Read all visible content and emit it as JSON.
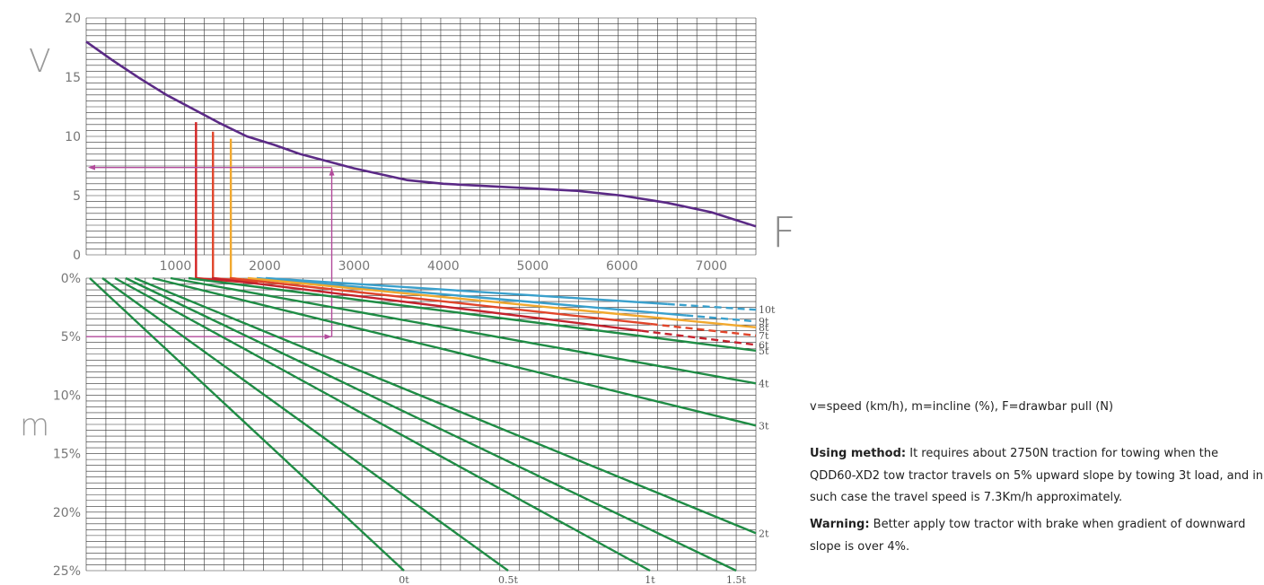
{
  "chart_data": [
    {
      "type": "line",
      "title": "",
      "xlabel": "F",
      "ylabel": "V",
      "xlim": [
        0,
        7500
      ],
      "ylim": [
        0,
        20
      ],
      "grid": true,
      "x_ticks": [
        "1000",
        "2000",
        "3000",
        "4000",
        "5000",
        "6000",
        "7000"
      ],
      "y_ticks": [
        "20",
        "15",
        "10",
        "5",
        "0"
      ],
      "series": [
        {
          "color": "#5b2a86",
          "x": [
            0,
            300,
            600,
            900,
            1200,
            1500,
            1800,
            2100,
            2400,
            2750,
            3000,
            3300,
            3600,
            4000,
            4500,
            5000,
            5500,
            6000,
            6500,
            7000,
            7500
          ],
          "y": [
            18.0,
            16.4,
            14.9,
            13.5,
            12.3,
            11.1,
            10.0,
            9.3,
            8.5,
            7.8,
            7.3,
            6.8,
            6.3,
            6.0,
            5.8,
            5.6,
            5.4,
            5.0,
            4.4,
            3.6,
            2.4
          ]
        }
      ],
      "reference_lines": [
        {
          "color": "#d32222",
          "x": 1230,
          "y_top": 11.2
        },
        {
          "color": "#e0452a",
          "x": 1420,
          "y_top": 10.4
        },
        {
          "color": "#f1a82e",
          "x": 1620,
          "y_top": 9.8
        },
        {
          "color": "#b24a9b",
          "x": 2750,
          "y_top": 7.3,
          "note": "arrow from F to speed"
        }
      ]
    },
    {
      "type": "line",
      "title": "",
      "ylabel": "m",
      "ylim": [
        0,
        25
      ],
      "grid": true,
      "y_ticks": [
        "0%",
        "5%",
        "10%",
        "15%",
        "20%",
        "25%"
      ],
      "bottom_labels": [
        "0t",
        "0.5t",
        "1t",
        "1.5t"
      ],
      "series": [
        {
          "name": "10t",
          "color": "#3aa0cc"
        },
        {
          "name": "9t",
          "color": "#3aa0cc"
        },
        {
          "name": "8t",
          "color": "#f1a82e"
        },
        {
          "name": "7t",
          "color": "#e0452a"
        },
        {
          "name": "6t",
          "color": "#c4222d"
        },
        {
          "name": "5t",
          "color": "#1f8c45"
        },
        {
          "name": "4t",
          "color": "#1f8c45"
        },
        {
          "name": "3t",
          "color": "#1f8c45"
        },
        {
          "name": "2t",
          "color": "#1f8c45"
        },
        {
          "name": "1.5t",
          "color": "#1f8c45"
        },
        {
          "name": "1t",
          "color": "#1f8c45"
        },
        {
          "name": "0.5t",
          "color": "#1f8c45"
        },
        {
          "name": "0t",
          "color": "#1f8c45"
        }
      ],
      "reference_lines": [
        {
          "color": "#b24a9b",
          "m": 5,
          "note": "arrow from incline to F"
        }
      ]
    }
  ],
  "notes": {
    "legend": "v=speed (km/h), m=incline (%), F=drawbar pull (N)",
    "method_label": "Using method:",
    "method_text": " It requires about 2750N traction for towing when the QDD60-XD2 tow tractor travels on 5% upward slope by towing 3t load, and in such case the travel speed is 7.3Km/h approximately.",
    "warning_label": "Warning:",
    "warning_text": " Better apply tow tractor with brake when gradient of downward slope is over 4%."
  }
}
